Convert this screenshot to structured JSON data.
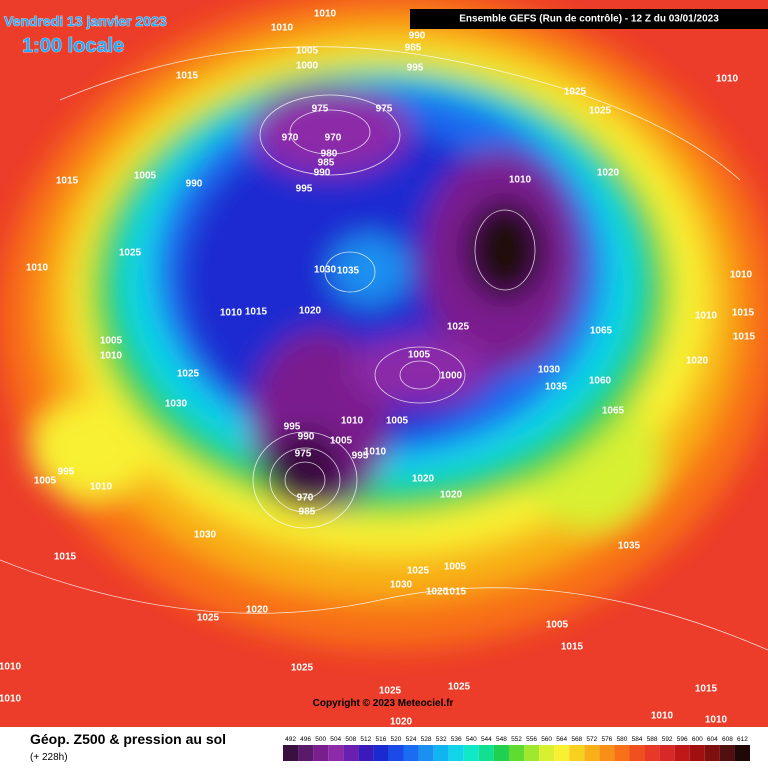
{
  "header": {
    "date": "Vendredi 13 janvier 2023",
    "time": "1:00 locale"
  },
  "banner": "Ensemble GEFS  (Run de contrôle)  - 12 Z du 03/01/2023",
  "copyright": "Copyright © 2023 Meteociel.fr",
  "footer": {
    "title": "Géop. Z500 & pression au sol",
    "lead": "(+ 228h)"
  },
  "legend": {
    "values": [
      492,
      496,
      500,
      504,
      508,
      512,
      516,
      520,
      524,
      528,
      532,
      536,
      540,
      544,
      548,
      552,
      556,
      560,
      564,
      568,
      572,
      576,
      580,
      584,
      588,
      592,
      596,
      600,
      604,
      608,
      612
    ],
    "colors": [
      "#3a1040",
      "#5a1a6a",
      "#7a1e8e",
      "#8c2aa8",
      "#6a1fb0",
      "#3a1ab8",
      "#1a2ad0",
      "#1a4ae8",
      "#1a6cf0",
      "#1a90f0",
      "#10b4f0",
      "#10d4e8",
      "#10e8c8",
      "#10e090",
      "#20d050",
      "#60dc30",
      "#a0e830",
      "#d8f030",
      "#f8f030",
      "#f8d020",
      "#f8b018",
      "#f89018",
      "#f87018",
      "#f05020",
      "#e83828",
      "#d82828",
      "#c01818",
      "#a01010",
      "#801010",
      "#501010",
      "#200808"
    ]
  },
  "isobar_labels": [
    1010,
    1010,
    1005,
    1000,
    990,
    985,
    995,
    1015,
    1025,
    1025,
    1010,
    975,
    975,
    970,
    970,
    980,
    985,
    990,
    995,
    1005,
    1015,
    990,
    1020,
    1010,
    1025,
    1010,
    1030,
    1035,
    1010,
    1015,
    1020,
    1010,
    1025,
    1065,
    1010,
    1015,
    1015,
    1005,
    1010,
    1005,
    1000,
    1020,
    1030,
    1060,
    1035,
    1025,
    1030,
    1065,
    995,
    1010,
    1005,
    990,
    1005,
    995,
    1010,
    975,
    1005,
    995,
    1010,
    1020,
    1020,
    970,
    985,
    1030,
    1035,
    1015,
    1025,
    1005,
    1030,
    1020,
    1015,
    1020,
    1025,
    1005,
    1015,
    1010,
    1025,
    1025,
    1025,
    1015,
    1010,
    1010,
    1010,
    1020
  ]
}
